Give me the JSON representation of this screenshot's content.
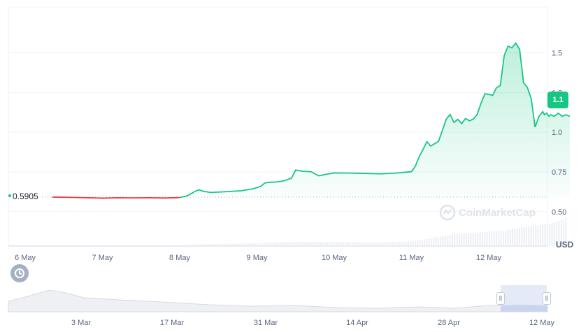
{
  "chart_data": {
    "type": "area",
    "currency_label": "USD",
    "open_price_label": "0.5905",
    "current_price_label": "1.1",
    "watermark": "CoinMarketCap",
    "ylim": [
      0.35,
      1.7
    ],
    "yticks": [
      {
        "value": 0.5,
        "label": "0.50"
      },
      {
        "value": 0.75,
        "label": "0.75"
      },
      {
        "value": 1.0,
        "label": "1.0"
      },
      {
        "value": 1.25,
        "label": "1.2"
      },
      {
        "value": 1.5,
        "label": "1.5"
      }
    ],
    "x_labels": [
      "6 May",
      "7 May",
      "8 May",
      "9 May",
      "10 May",
      "11 May",
      "12 May"
    ],
    "x_range_days": [
      0,
      7.05
    ],
    "series": [
      {
        "x": [
          0.35,
          0.5,
          0.7,
          0.9,
          1.0,
          1.2,
          1.4,
          1.6,
          1.8,
          2.0,
          2.1,
          2.15,
          2.2,
          2.25,
          2.3,
          2.4,
          2.6,
          2.8,
          2.95,
          3.05,
          3.1,
          3.15,
          3.25,
          3.35,
          3.45,
          3.5,
          3.6,
          3.7,
          3.8,
          3.9,
          4.0,
          4.2,
          4.4,
          4.6,
          4.8,
          5.0,
          5.05,
          5.1,
          5.15,
          5.2,
          5.25,
          5.3,
          5.35,
          5.4,
          5.45,
          5.5,
          5.55,
          5.6,
          5.65,
          5.7,
          5.75,
          5.8,
          5.85,
          5.9,
          5.95,
          6.0,
          6.05,
          6.1,
          6.15,
          6.2,
          6.25,
          6.3,
          6.35,
          6.4,
          6.45,
          6.5,
          6.55,
          6.6,
          6.65,
          6.7,
          6.72,
          6.75,
          6.78,
          6.8,
          6.85,
          6.9,
          6.95,
          7.0,
          7.05
        ],
        "y": [
          0.592,
          0.591,
          0.589,
          0.587,
          0.585,
          0.588,
          0.587,
          0.588,
          0.586,
          0.589,
          0.6,
          0.614,
          0.628,
          0.638,
          0.629,
          0.621,
          0.626,
          0.632,
          0.644,
          0.659,
          0.68,
          0.685,
          0.687,
          0.694,
          0.712,
          0.762,
          0.754,
          0.752,
          0.726,
          0.736,
          0.744,
          0.743,
          0.741,
          0.738,
          0.743,
          0.752,
          0.786,
          0.846,
          0.892,
          0.941,
          0.913,
          0.928,
          0.942,
          1.011,
          1.082,
          1.112,
          1.062,
          1.081,
          1.055,
          1.087,
          1.072,
          1.082,
          1.112,
          1.182,
          1.242,
          1.238,
          1.232,
          1.28,
          1.294,
          1.482,
          1.542,
          1.531,
          1.561,
          1.522,
          1.313,
          1.282,
          1.211,
          1.032,
          1.1,
          1.13,
          1.11,
          1.12,
          1.1,
          1.11,
          1.1,
          1.12,
          1.1,
          1.11,
          1.1
        ],
        "color_up": "#16c784",
        "color_down": "#ea3943"
      }
    ],
    "volume_note": "volume histogram shown as light gray bars",
    "navigator_labels": [
      "3 Mar",
      "17 Mar",
      "31 Mar",
      "14 Apr",
      "28 Apr",
      "12 May"
    ],
    "grid": true,
    "legend": "none"
  },
  "controls": {
    "history_icon": "history-icon",
    "handle_glyph": "||"
  }
}
